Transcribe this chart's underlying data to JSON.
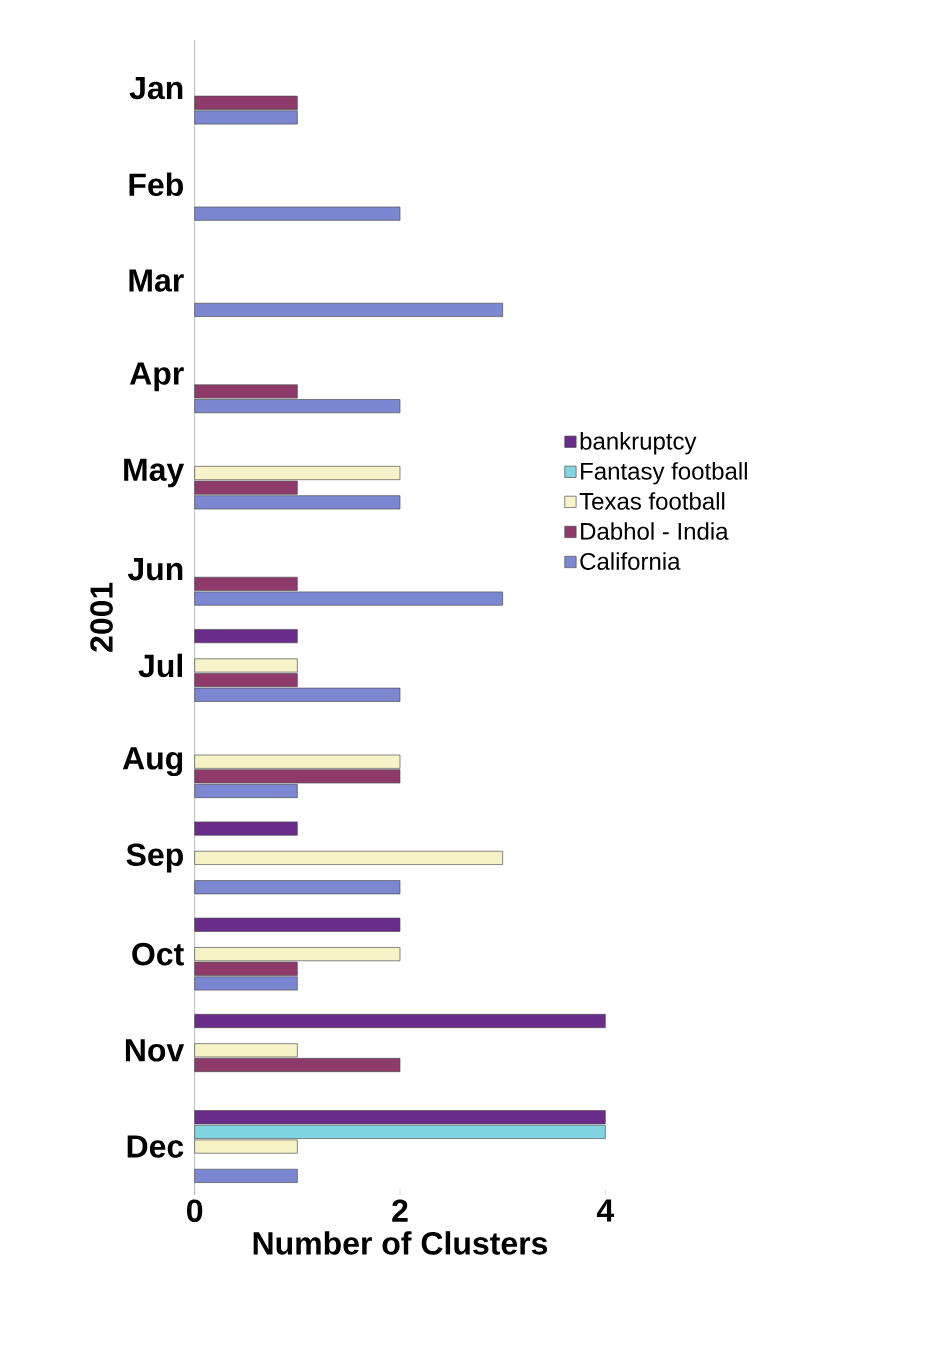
{
  "chart_data": {
    "type": "bar",
    "orientation": "horizontal",
    "xlabel": "Number of Clusters",
    "ylabel": "2001",
    "categories": [
      "Jan",
      "Feb",
      "Mar",
      "Apr",
      "May",
      "Jun",
      "Jul",
      "Aug",
      "Sep",
      "Oct",
      "Nov",
      "Dec"
    ],
    "series": [
      {
        "name": "bankruptcy",
        "color": "#6a2c8a",
        "values": [
          0,
          0,
          0,
          0,
          0,
          0,
          1,
          0,
          1,
          2,
          4,
          4
        ]
      },
      {
        "name": "Fantasy football",
        "color": "#80d4e2",
        "values": [
          0,
          0,
          0,
          0,
          0,
          0,
          0,
          0,
          0,
          0,
          0,
          4
        ]
      },
      {
        "name": "Texas football",
        "color": "#f6f3c8",
        "values": [
          0,
          0,
          0,
          0,
          2,
          0,
          1,
          2,
          3,
          2,
          1,
          1
        ]
      },
      {
        "name": "Dabhol - India",
        "color": "#8e3b6c",
        "values": [
          1,
          0,
          0,
          1,
          1,
          1,
          1,
          2,
          0,
          1,
          2,
          0
        ]
      },
      {
        "name": "California",
        "color": "#7c87d2",
        "values": [
          1,
          2,
          3,
          2,
          2,
          3,
          2,
          1,
          2,
          1,
          0,
          1
        ]
      }
    ],
    "xlim": [
      0,
      4
    ],
    "xticks": [
      0,
      2,
      4
    ],
    "legend": "right"
  }
}
